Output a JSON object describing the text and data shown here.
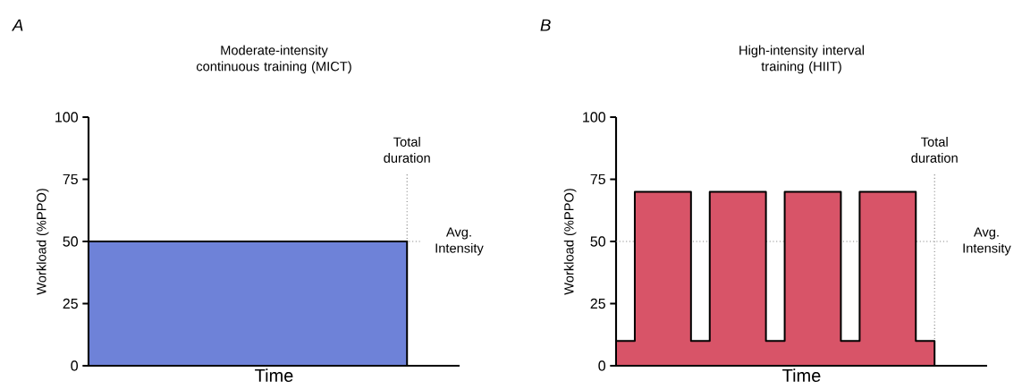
{
  "chart_data": [
    {
      "type": "bar",
      "title": "Moderate-intensity continuous training (MICT)",
      "xlabel": "Time",
      "ylabel": "Workload (%PPO)",
      "annotations": [
        "A",
        "Total duration"
      ],
      "categories": [
        null
      ],
      "values": [
        50
      ],
      "color": "#6e82d8",
      "ylim": [
        0,
        100
      ],
      "yticks": [
        0,
        25,
        50,
        75,
        100
      ],
      "tick_labels": "y",
      "ref_lines": [
        {
          "axis": "y",
          "value": 50,
          "label": "Avg. Intensity",
          "line_style": "dotted",
          "color": "#808080"
        }
      ]
    },
    {
      "type": "area",
      "title": "High-intensity interval training (HIIT)",
      "xlabel": "Time",
      "ylabel": "Workload (%PPO)",
      "annotations": [
        "B",
        "Total duration"
      ],
      "categories": [
        null,
        null,
        null,
        null,
        null,
        null,
        null,
        null,
        null,
        null,
        null,
        null,
        null,
        null,
        null,
        null,
        null,
        null
      ],
      "values": [
        10,
        70,
        70,
        70,
        10,
        70,
        70,
        70,
        10,
        70,
        70,
        70,
        10,
        70,
        70,
        70,
        10,
        10
      ],
      "color": "#d85468",
      "ylim": [
        0,
        100
      ],
      "yticks": [
        0,
        25,
        50,
        75,
        100
      ],
      "tick_labels": "y",
      "ref_lines": [
        {
          "axis": "y",
          "value": 50,
          "label": "Avg. Intensity",
          "line_style": "dotted",
          "color": "#808080"
        }
      ]
    }
  ]
}
